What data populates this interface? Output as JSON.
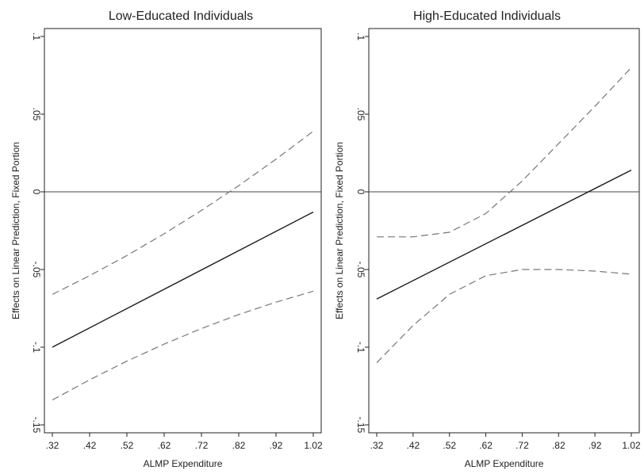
{
  "chart_data": [
    {
      "type": "line",
      "title": "Low-Educated Individuals",
      "xlabel": "ALMP Expenditure",
      "ylabel": "Effects on Linear Prediction, Fixed Portion",
      "xlim": [
        0.32,
        1.02
      ],
      "ylim": [
        -0.15,
        0.1
      ],
      "xticks": [
        0.32,
        0.42,
        0.52,
        0.62,
        0.72,
        0.82,
        0.92,
        1.02
      ],
      "xtick_labels": [
        ".32",
        ".42",
        ".52",
        ".62",
        ".72",
        ".82",
        ".92",
        "1.02"
      ],
      "yticks": [
        -0.15,
        -0.1,
        -0.05,
        0,
        0.05,
        0.1
      ],
      "ytick_labels": [
        "-.15",
        "-.1",
        "-.05",
        "0",
        ".05",
        ".1"
      ],
      "reference_line": 0,
      "grid": false,
      "series": [
        {
          "role": "estimate",
          "style": "solid",
          "color": "#1a1a1a",
          "x": [
            0.32,
            1.02
          ],
          "y": [
            -0.1,
            -0.013
          ]
        },
        {
          "role": "upper-ci",
          "style": "dashed",
          "color": "#777777",
          "x": [
            0.32,
            0.42,
            0.52,
            0.62,
            0.72,
            0.82,
            0.92,
            1.02
          ],
          "y": [
            -0.066,
            -0.054,
            -0.041,
            -0.027,
            -0.012,
            0.004,
            0.021,
            0.039
          ]
        },
        {
          "role": "lower-ci",
          "style": "dashed",
          "color": "#777777",
          "x": [
            0.32,
            0.42,
            0.52,
            0.62,
            0.72,
            0.82,
            0.92,
            1.02
          ],
          "y": [
            -0.134,
            -0.121,
            -0.109,
            -0.098,
            -0.088,
            -0.079,
            -0.071,
            -0.064
          ]
        }
      ]
    },
    {
      "type": "line",
      "title": "High-Educated Individuals",
      "xlabel": "ALMP Expenditure",
      "ylabel": "Effects on Linear Prediction, Fixed Portion",
      "xlim": [
        0.32,
        1.02
      ],
      "ylim": [
        -0.15,
        0.1
      ],
      "xticks": [
        0.32,
        0.42,
        0.52,
        0.62,
        0.72,
        0.82,
        0.92,
        1.02
      ],
      "xtick_labels": [
        ".32",
        ".42",
        ".52",
        ".62",
        ".72",
        ".82",
        ".92",
        "1.02"
      ],
      "yticks": [
        -0.15,
        -0.1,
        -0.05,
        0,
        0.05,
        0.1
      ],
      "ytick_labels": [
        "-.15",
        "-.1",
        "-.05",
        "0",
        ".05",
        ".1"
      ],
      "reference_line": 0,
      "grid": false,
      "series": [
        {
          "role": "estimate",
          "style": "solid",
          "color": "#1a1a1a",
          "x": [
            0.32,
            1.02
          ],
          "y": [
            -0.069,
            0.014
          ]
        },
        {
          "role": "upper-ci",
          "style": "dashed",
          "color": "#777777",
          "x": [
            0.32,
            0.42,
            0.52,
            0.62,
            0.72,
            0.82,
            0.92,
            1.02
          ],
          "y": [
            -0.029,
            -0.029,
            -0.026,
            -0.014,
            0.007,
            0.031,
            0.055,
            0.08
          ]
        },
        {
          "role": "lower-ci",
          "style": "dashed",
          "color": "#777777",
          "x": [
            0.32,
            0.42,
            0.52,
            0.62,
            0.72,
            0.82,
            0.92,
            1.02
          ],
          "y": [
            -0.11,
            -0.086,
            -0.066,
            -0.054,
            -0.05,
            -0.05,
            -0.051,
            -0.053
          ]
        }
      ]
    }
  ]
}
